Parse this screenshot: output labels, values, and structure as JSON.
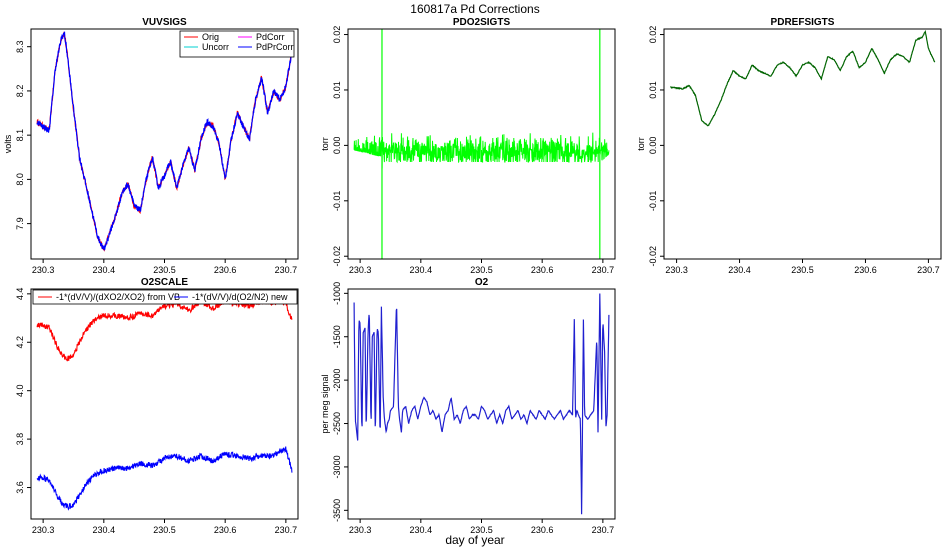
{
  "figure": {
    "title": "160817a   Pd Corrections",
    "xlabel": "day of year"
  },
  "chart_data": [
    {
      "type": "line",
      "title": "VUVSIGS",
      "xlabel": "",
      "ylabel": "volts",
      "xlim": [
        230.28,
        230.72
      ],
      "ylim": [
        7.82,
        8.34
      ],
      "xticks": [
        "230.3",
        "230.4",
        "230.5",
        "230.6",
        "230.7"
      ],
      "yticks": [
        "7.9",
        "8.0",
        "8.1",
        "8.2",
        "8.3"
      ],
      "legend_position": "top-right",
      "band": 0.012,
      "legend": [
        "Orig",
        "Uncorr",
        "PdCorr",
        "PdPrCorr"
      ],
      "series": [
        {
          "name": "Orig",
          "color": "#ff0000",
          "x": [
            230.29,
            230.3,
            230.31,
            230.32,
            230.33,
            230.335,
            230.34,
            230.35,
            230.36,
            230.37,
            230.38,
            230.39,
            230.4,
            230.41,
            230.42,
            230.43,
            230.44,
            230.45,
            230.46,
            230.47,
            230.48,
            230.49,
            230.5,
            230.51,
            230.52,
            230.53,
            230.54,
            230.55,
            230.56,
            230.57,
            230.58,
            230.59,
            230.6,
            230.61,
            230.62,
            230.63,
            230.64,
            230.65,
            230.66,
            230.67,
            230.68,
            230.69,
            230.7,
            230.71
          ],
          "y": [
            8.13,
            8.12,
            8.11,
            8.25,
            8.32,
            8.33,
            8.28,
            8.16,
            8.05,
            7.99,
            7.93,
            7.87,
            7.84,
            7.88,
            7.92,
            7.97,
            7.99,
            7.94,
            7.93,
            8.0,
            8.05,
            7.98,
            8.01,
            8.04,
            7.98,
            8.03,
            8.07,
            8.02,
            8.09,
            8.13,
            8.12,
            8.08,
            8.0,
            8.09,
            8.15,
            8.12,
            8.09,
            8.18,
            8.23,
            8.15,
            8.2,
            8.18,
            8.21,
            8.29
          ]
        },
        {
          "name": "Uncorr",
          "color": "#00d0d0"
        },
        {
          "name": "PdCorr",
          "color": "#ff00ff"
        },
        {
          "name": "PdPrCorr",
          "color": "#0000ff"
        }
      ]
    },
    {
      "type": "line",
      "title": "PDO2SIGTS",
      "xlabel": "",
      "ylabel": "torr",
      "xlim": [
        230.28,
        230.72
      ],
      "ylim": [
        -0.0205,
        0.021
      ],
      "xticks": [
        "230.3",
        "230.4",
        "230.5",
        "230.6",
        "230.7"
      ],
      "yticks": [
        "-0.02",
        "-0.01",
        "0.00",
        "0.01",
        "0.02"
      ],
      "series": [
        {
          "name": "",
          "color": "#00ff00",
          "x": [
            230.29,
            230.335,
            230.336,
            230.337,
            230.34,
            230.694,
            230.695,
            230.696,
            230.71
          ],
          "y_low": [
            -0.0008,
            -0.002,
            -0.021,
            -0.004,
            -0.003,
            -0.003,
            -0.021,
            -0.003,
            -0.0015
          ],
          "y_high": [
            0.0008,
            0.003,
            0.021,
            0.004,
            0.003,
            0.003,
            0.021,
            0.003,
            0.0015
          ],
          "noise_amplitude": 0.0028
        }
      ]
    },
    {
      "type": "line",
      "title": "PDREFSIGTS",
      "xlabel": "",
      "ylabel": "torr",
      "xlim": [
        230.28,
        230.72
      ],
      "ylim": [
        -0.0205,
        0.021
      ],
      "xticks": [
        "230.3",
        "230.4",
        "230.5",
        "230.6",
        "230.7"
      ],
      "yticks": [
        "-0.02",
        "-0.01",
        "0.00",
        "0.01",
        "0.02"
      ],
      "series": [
        {
          "name": "",
          "color": "#006400",
          "x": [
            230.29,
            230.31,
            230.32,
            230.33,
            230.34,
            230.35,
            230.36,
            230.37,
            230.38,
            230.39,
            230.4,
            230.41,
            230.42,
            230.43,
            230.44,
            230.45,
            230.46,
            230.47,
            230.48,
            230.49,
            230.5,
            230.51,
            230.52,
            230.53,
            230.54,
            230.55,
            230.56,
            230.57,
            230.58,
            230.59,
            230.6,
            230.61,
            230.62,
            230.63,
            230.64,
            230.65,
            230.66,
            230.67,
            230.68,
            230.69,
            230.695,
            230.7,
            230.71
          ],
          "y": [
            0.0105,
            0.0102,
            0.0108,
            0.009,
            0.0045,
            0.0035,
            0.0055,
            0.008,
            0.011,
            0.0135,
            0.0125,
            0.012,
            0.0145,
            0.0135,
            0.013,
            0.0125,
            0.0145,
            0.015,
            0.014,
            0.0125,
            0.0145,
            0.015,
            0.014,
            0.012,
            0.016,
            0.0155,
            0.0135,
            0.016,
            0.017,
            0.014,
            0.015,
            0.0175,
            0.0155,
            0.013,
            0.0155,
            0.0165,
            0.016,
            0.015,
            0.019,
            0.0195,
            0.0205,
            0.0175,
            0.015
          ]
        }
      ]
    },
    {
      "type": "line",
      "title": "O2SCALE",
      "xlabel": "",
      "ylabel": "",
      "xlim": [
        230.28,
        230.72
      ],
      "ylim": [
        3.47,
        4.42
      ],
      "xticks": [
        "230.3",
        "230.4",
        "230.5",
        "230.6",
        "230.7"
      ],
      "yticks": [
        "3.6",
        "3.8",
        "4.0",
        "4.2",
        "4.4"
      ],
      "legend_position": "top",
      "band": 0.012,
      "series": [
        {
          "name": "-1*(dV/V)/(dXO2/XO2) from VB",
          "color": "#ff0000",
          "x": [
            230.29,
            230.3,
            230.31,
            230.32,
            230.33,
            230.34,
            230.35,
            230.36,
            230.37,
            230.38,
            230.39,
            230.4,
            230.42,
            230.44,
            230.46,
            230.48,
            230.5,
            230.52,
            230.54,
            230.56,
            230.58,
            230.6,
            230.62,
            230.64,
            230.66,
            230.68,
            230.69,
            230.7,
            230.71
          ],
          "y": [
            4.27,
            4.27,
            4.26,
            4.2,
            4.15,
            4.13,
            4.15,
            4.2,
            4.25,
            4.28,
            4.3,
            4.31,
            4.31,
            4.3,
            4.32,
            4.31,
            4.35,
            4.36,
            4.33,
            4.37,
            4.34,
            4.37,
            4.36,
            4.35,
            4.37,
            4.36,
            4.37,
            4.36,
            4.29
          ]
        },
        {
          "name": "-1*(dV/V)/d(O2/N2) new",
          "color": "#0000ff",
          "x": [
            230.29,
            230.3,
            230.31,
            230.32,
            230.33,
            230.34,
            230.35,
            230.36,
            230.37,
            230.38,
            230.39,
            230.4,
            230.42,
            230.44,
            230.46,
            230.48,
            230.5,
            230.52,
            230.54,
            230.56,
            230.58,
            230.6,
            230.62,
            230.64,
            230.66,
            230.68,
            230.69,
            230.7,
            230.71
          ],
          "y": [
            3.64,
            3.64,
            3.63,
            3.58,
            3.54,
            3.52,
            3.53,
            3.57,
            3.61,
            3.64,
            3.66,
            3.67,
            3.68,
            3.68,
            3.7,
            3.69,
            3.72,
            3.73,
            3.71,
            3.73,
            3.71,
            3.74,
            3.73,
            3.72,
            3.73,
            3.73,
            3.75,
            3.76,
            3.67
          ]
        }
      ]
    },
    {
      "type": "line",
      "title": "O2",
      "xlabel": "",
      "ylabel": "per meg signal",
      "xlim": [
        230.28,
        230.72
      ],
      "ylim": [
        -3600,
        -950
      ],
      "xticks": [
        "230.3",
        "230.4",
        "230.5",
        "230.6",
        "230.7"
      ],
      "yticks": [
        "-3500",
        "-3000",
        "-2500",
        "-2000",
        "-1500",
        "-1000"
      ],
      "series": [
        {
          "name": "",
          "color": "#2020d0",
          "x": [
            230.29,
            230.292,
            230.296,
            230.298,
            230.3,
            230.303,
            230.305,
            230.308,
            230.31,
            230.313,
            230.315,
            230.318,
            230.32,
            230.323,
            230.325,
            230.328,
            230.33,
            230.333,
            230.335,
            230.338,
            230.34,
            230.343,
            230.345,
            230.348,
            230.35,
            230.355,
            230.36,
            230.363,
            230.365,
            230.368,
            230.37,
            230.375,
            230.38,
            230.385,
            230.39,
            230.395,
            230.4,
            230.405,
            230.41,
            230.415,
            230.42,
            230.425,
            230.43,
            230.435,
            230.44,
            230.445,
            230.45,
            230.455,
            230.46,
            230.465,
            230.47,
            230.475,
            230.48,
            230.485,
            230.49,
            230.495,
            230.5,
            230.505,
            230.51,
            230.515,
            230.52,
            230.525,
            230.53,
            230.535,
            230.54,
            230.545,
            230.55,
            230.555,
            230.56,
            230.565,
            230.57,
            230.575,
            230.58,
            230.585,
            230.59,
            230.595,
            230.6,
            230.605,
            230.61,
            230.615,
            230.62,
            230.625,
            230.63,
            230.635,
            230.64,
            230.645,
            230.65,
            230.653,
            230.655,
            230.657,
            230.66,
            230.663,
            230.665,
            230.668,
            230.67,
            230.675,
            230.68,
            230.685,
            230.69,
            230.692,
            230.695,
            230.698,
            230.7,
            230.703,
            230.705,
            230.707,
            230.71
          ],
          "y": [
            -1100,
            -2450,
            -2700,
            -1300,
            -1350,
            -2650,
            -1450,
            -1400,
            -2600,
            -1450,
            -1200,
            -2550,
            -1500,
            -1450,
            -2650,
            -1400,
            -1450,
            -2700,
            -1150,
            -2200,
            -2450,
            -2600,
            -2500,
            -2450,
            -2350,
            -2300,
            -1100,
            -2300,
            -2450,
            -2600,
            -2350,
            -2300,
            -2500,
            -2350,
            -2300,
            -2450,
            -2300,
            -2200,
            -2250,
            -2400,
            -2350,
            -2450,
            -2400,
            -2600,
            -2400,
            -2350,
            -2200,
            -2450,
            -2400,
            -2500,
            -2350,
            -2300,
            -2450,
            -2400,
            -2400,
            -2450,
            -2300,
            -2350,
            -2450,
            -2400,
            -2350,
            -2500,
            -2400,
            -2500,
            -2350,
            -2300,
            -2450,
            -2400,
            -2350,
            -2450,
            -2400,
            -2500,
            -2350,
            -2400,
            -2450,
            -2350,
            -2400,
            -2450,
            -2350,
            -2400,
            -2450,
            -2400,
            -2350,
            -2450,
            -2400,
            -2350,
            -2400,
            -1300,
            -2450,
            -2350,
            -2400,
            -2450,
            -3550,
            -1300,
            -2400,
            -2450,
            -2400,
            -2350,
            -1500,
            -2600,
            -1000,
            -2450,
            -1300,
            -1700,
            -2550,
            -2400,
            -1250
          ]
        }
      ]
    }
  ]
}
